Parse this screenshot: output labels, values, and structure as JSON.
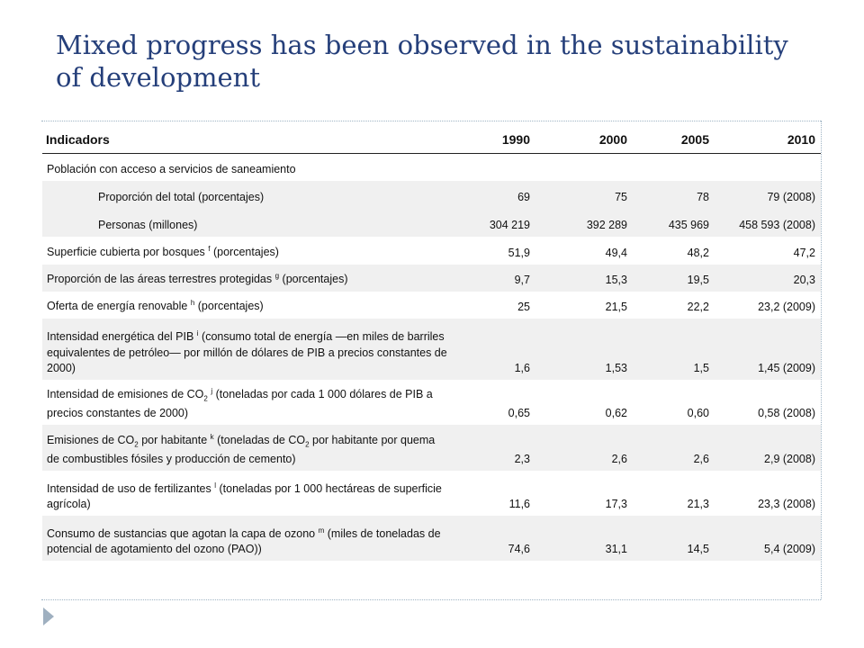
{
  "title": "Mixed progress has been observed in the sustainability of development",
  "table": {
    "headers": [
      "Indicadors",
      "1990",
      "2000",
      "2005",
      "2010"
    ],
    "rows": [
      {
        "label": "Población con acceso a servicios de saneamiento",
        "values": [
          "",
          "",
          "",
          ""
        ]
      },
      {
        "label": "Proporción del total (porcentajes)",
        "values": [
          "69",
          "75",
          "78",
          "79 (2008)"
        ]
      },
      {
        "label": "Personas (millones)",
        "values": [
          "304 219",
          "392 289",
          "435 969",
          "458 593 (2008)"
        ]
      },
      {
        "label_pre": "Superficie cubierta por bosques ",
        "label_sup": "f",
        "label_post": " (porcentajes)",
        "values": [
          "51,9",
          "49,4",
          "48,2",
          "47,2"
        ]
      },
      {
        "label_pre": "Proporción de las áreas terrestres protegidas ",
        "label_sup": "g",
        "label_post": " (porcentajes)",
        "values": [
          "9,7",
          "15,3",
          "19,5",
          "20,3"
        ]
      },
      {
        "label_pre": "Oferta de energía renovable ",
        "label_sup": "h",
        "label_post": " (porcentajes)",
        "values": [
          "25",
          "21,5",
          "22,2",
          "23,2 (2009)"
        ]
      },
      {
        "label_pre": "Intensidad energética del PIB ",
        "label_sup": "i",
        "label_post": " (consumo total de energía —en miles de barriles equivalentes de petróleo— por millón de dólares de PIB a precios constantes de 2000)",
        "values": [
          "1,6",
          "1,53",
          "1,5",
          "1,45 (2009)"
        ]
      },
      {
        "label_pre": "Intensidad de emisiones de CO",
        "label_sub": "2",
        "label_sup": "j",
        "label_post": " (toneladas por cada 1 000 dólares de PIB a precios constantes de 2000)",
        "values": [
          "0,65",
          "0,62",
          "0,60",
          "0,58 (2008)"
        ]
      },
      {
        "label_pre": "Emisiones de CO",
        "label_sub": "2",
        "label_mid": " por habitante ",
        "label_sup": "k",
        "label_mid2": " (toneladas de CO",
        "label_sub2": "2",
        "label_post": " por habitante por quema de combustibles fósiles y producción de cemento)",
        "values": [
          "2,3",
          "2,6",
          "2,6",
          "2,9 (2008)"
        ]
      },
      {
        "label_pre": "Intensidad de uso de fertilizantes ",
        "label_sup": "l",
        "label_post": " (toneladas por 1 000 hectáreas de superficie agrícola)",
        "values": [
          "11,6",
          "17,3",
          "21,3",
          "23,3 (2008)"
        ]
      },
      {
        "label_pre": "Consumo de sustancias que agotan la capa de ozono ",
        "label_sup": "m",
        "label_post": " (miles de toneladas de potencial de agotamiento del ozono (PAO))",
        "values": [
          "74,6",
          "31,1",
          "14,5",
          "5,4 (2009)"
        ]
      }
    ]
  }
}
